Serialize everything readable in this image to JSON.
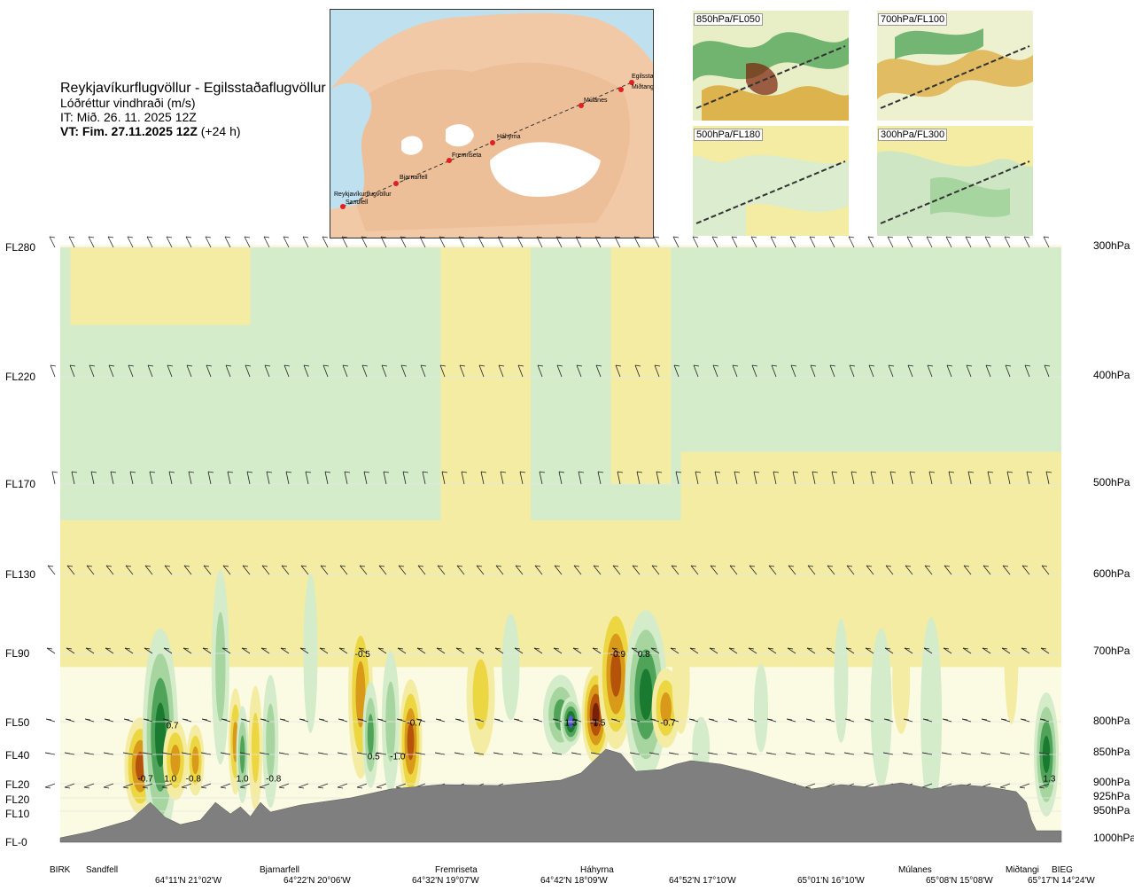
{
  "header": {
    "route": "Reykjavíkurflugvöllur - Egilsstaðaflugvöllur",
    "quantity": "Lóðréttur vindhraði (m/s)",
    "issue": "IT: Mið. 26. 11. 2025 12Z",
    "valid_main": "VT: Fim. 27.11.2025 12Z",
    "valid_offset": "(+24 h)"
  },
  "route_map": {
    "places": [
      "Egilsstaðir",
      "Miðtangi",
      "Múlanes",
      "Háhyrna",
      "Fremriseta",
      "Bjarnarfell",
      "Reykjavíkurflugvöllur",
      "Sandfell"
    ]
  },
  "level_maps": [
    {
      "label": "850hPa/FL050"
    },
    {
      "label": "700hPa/FL100"
    },
    {
      "label": "500hPa/FL180"
    },
    {
      "label": "300hPa/FL300"
    }
  ],
  "chart_data": {
    "type": "heatmap",
    "variable": "vertical wind speed (m/s)",
    "flight_levels": [
      {
        "label": "FL280",
        "pressure": 300
      },
      {
        "label": "FL220",
        "pressure": 400
      },
      {
        "label": "FL170",
        "pressure": 500
      },
      {
        "label": "FL130",
        "pressure": 600
      },
      {
        "label": "FL90",
        "pressure": 700
      },
      {
        "label": "FL50",
        "pressure": 800
      },
      {
        "label": "FL40",
        "pressure": 850
      },
      {
        "label": "FL20",
        "pressure": 900
      },
      {
        "label": "FL20",
        "pressure": 925
      },
      {
        "label": "FL10",
        "pressure": 950
      },
      {
        "label": "FL-0",
        "pressure": 1000
      }
    ],
    "pressure_labels": [
      "300hPa",
      "400hPa",
      "500hPa",
      "600hPa",
      "700hPa",
      "800hPa",
      "850hPa",
      "900hPa",
      "925hPa",
      "950hPa",
      "1000hPa"
    ],
    "locations": [
      "BIRK",
      "Sandfell",
      "Bjarnarfell",
      "Fremriseta",
      "Háhyrna",
      "Múlanes",
      "Miðtangi",
      "BIEG"
    ],
    "coordinates": [
      "64°11'N 21°02'W",
      "64°22'N 20°06'W",
      "64°32'N 19°07'W",
      "64°42'N 18°09'W",
      "64°52'N 17°10'W",
      "65°01'N 16°10'W",
      "65°08'N 15°08'W",
      "65°17'N 14°24'W"
    ],
    "value_labels": [
      {
        "text": "-0.7",
        "x": 0.085,
        "p": 890
      },
      {
        "text": "1.0",
        "x": 0.11,
        "p": 890
      },
      {
        "text": "-0.8",
        "x": 0.133,
        "p": 890
      },
      {
        "text": "0.7",
        "x": 0.112,
        "p": 805
      },
      {
        "text": "1.0",
        "x": 0.182,
        "p": 890
      },
      {
        "text": "-0.8",
        "x": 0.213,
        "p": 890
      },
      {
        "text": "-0.5",
        "x": 0.302,
        "p": 700
      },
      {
        "text": "0.5",
        "x": 0.313,
        "p": 852
      },
      {
        "text": "-1.0",
        "x": 0.337,
        "p": 852
      },
      {
        "text": "-0.7",
        "x": 0.354,
        "p": 801
      },
      {
        "text": "1.3",
        "x": 0.51,
        "p": 801
      },
      {
        "text": "-1.5",
        "x": 0.537,
        "p": 801
      },
      {
        "text": "-0.9",
        "x": 0.557,
        "p": 700
      },
      {
        "text": "0.8",
        "x": 0.583,
        "p": 700
      },
      {
        "text": "-0.7",
        "x": 0.607,
        "p": 801
      },
      {
        "text": "1.3",
        "x": 0.988,
        "p": 890
      }
    ],
    "colors": {
      "strong_down": "#7a1f08",
      "down3": "#b45309",
      "down2": "#d99a1a",
      "down1": "#ecd742",
      "weak_down": "#f4eca2",
      "neutral": "#fbfbe3",
      "weak_up": "#d4ecc9",
      "up1": "#a6d5a0",
      "up2": "#4fa45a",
      "up3": "#1a7a30",
      "strong_up": "#5b5fd0",
      "terrain": "#7f7f7f"
    }
  }
}
